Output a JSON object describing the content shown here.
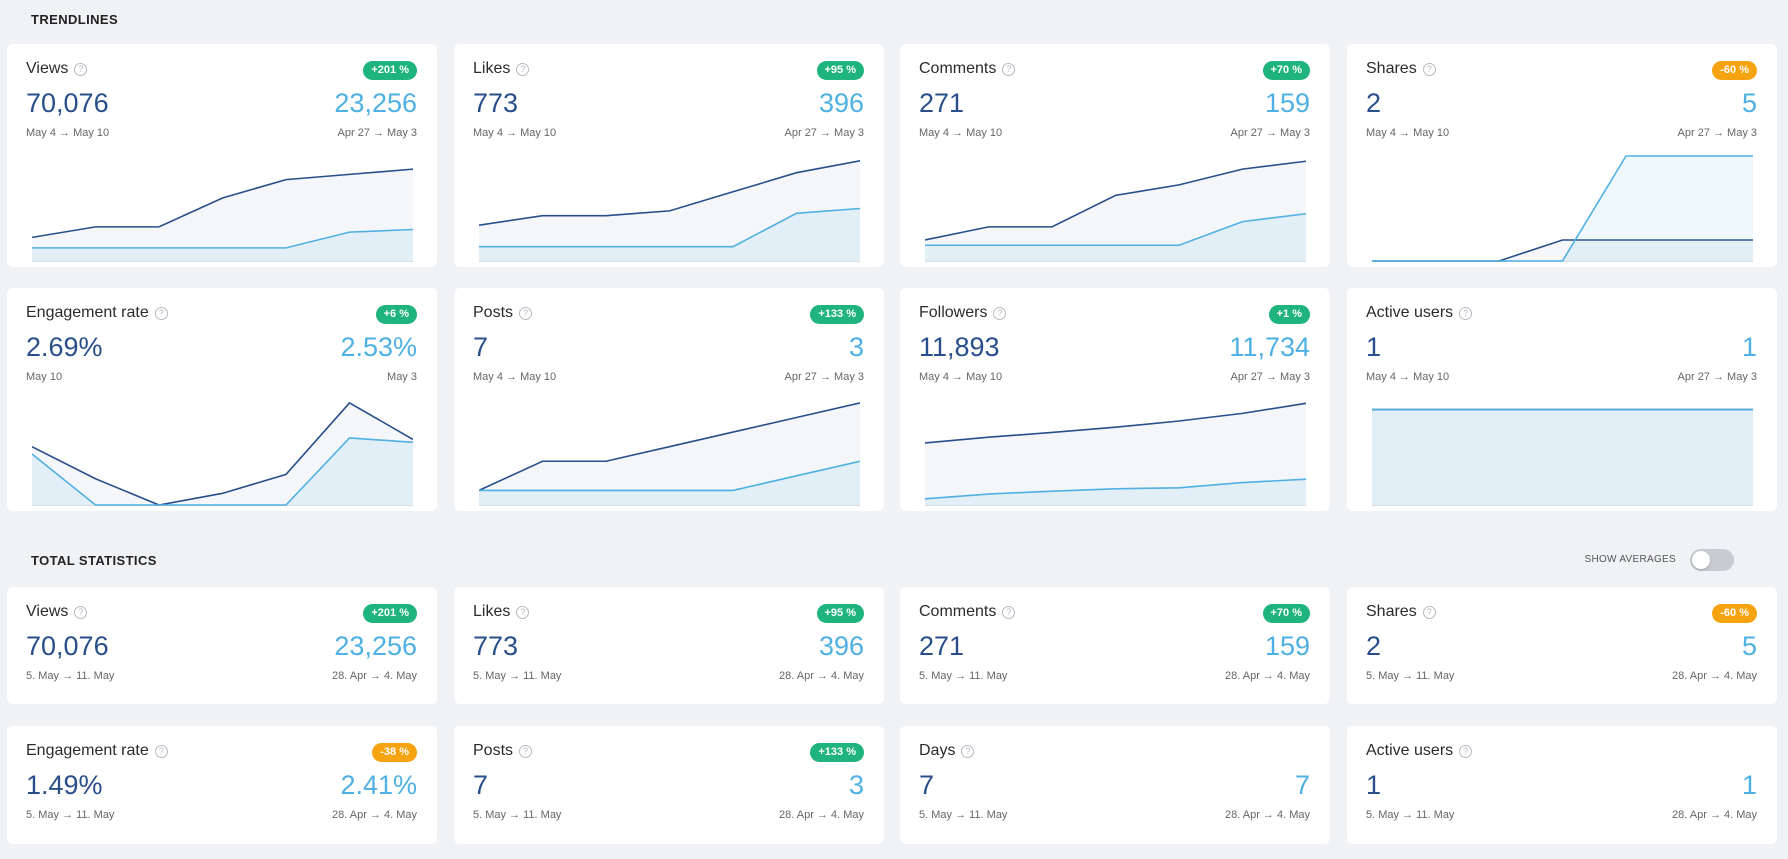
{
  "sections": {
    "trendlines_title": "TRENDLINES",
    "total_title": "TOTAL STATISTICS",
    "show_averages_label": "SHOW AVERAGES",
    "show_averages_on": false
  },
  "colors": {
    "current": "#284f89",
    "previous": "#4fb0e3",
    "badge_up": "#1fb37e",
    "badge_down": "#f5a311"
  },
  "trendlines": [
    {
      "title": "Views",
      "badge": "+201 %",
      "badge_type": "up",
      "current": "70,076",
      "previous": "23,256",
      "current_range": "May 4 → May 10",
      "previous_range": "Apr 27 → May 3",
      "chart_data": {
        "type": "line",
        "current": [
          9,
          13,
          13,
          24,
          31,
          33,
          35
        ],
        "previous": [
          5,
          5,
          5,
          5,
          5,
          11,
          12
        ],
        "ymax": 40
      }
    },
    {
      "title": "Likes",
      "badge": "+95 %",
      "badge_type": "up",
      "current": "773",
      "previous": "396",
      "current_range": "May 4 → May 10",
      "previous_range": "Apr 27 → May 3",
      "chart_data": {
        "type": "line",
        "current": [
          15,
          19,
          19,
          21,
          29,
          37,
          42
        ],
        "previous": [
          6,
          6,
          6,
          6,
          6,
          20,
          22
        ],
        "ymax": 44
      }
    },
    {
      "title": "Comments",
      "badge": "+70 %",
      "badge_type": "up",
      "current": "271",
      "previous": "159",
      "current_range": "May 4 → May 10",
      "previous_range": "Apr 27 → May 3",
      "chart_data": {
        "type": "line",
        "current": [
          8,
          13,
          13,
          25,
          29,
          35,
          38
        ],
        "previous": [
          6,
          6,
          6,
          6,
          6,
          15,
          18
        ],
        "ymax": 40
      }
    },
    {
      "title": "Shares",
      "badge": "-60 %",
      "badge_type": "down",
      "current": "2",
      "previous": "5",
      "current_range": "May 4 → May 10",
      "previous_range": "Apr 27 → May 3",
      "chart_data": {
        "type": "line",
        "current": [
          0,
          0,
          0,
          1,
          1,
          1,
          1
        ],
        "previous": [
          0,
          0,
          0,
          0,
          5,
          5,
          5
        ],
        "ymax": 5
      }
    },
    {
      "title": "Engagement rate",
      "badge": "+6 %",
      "badge_type": "up",
      "current": "2.69%",
      "previous": "2.53%",
      "current_range": "May 10",
      "previous_range": "May 3",
      "chart_data": {
        "type": "line",
        "current": [
          2.0,
          0.9,
          0.0,
          0.4,
          1.05,
          3.5,
          2.25
        ],
        "previous": [
          1.75,
          0.0,
          0.0,
          0.0,
          0.0,
          2.3,
          2.15
        ],
        "ymax": 3.6
      }
    },
    {
      "title": "Posts",
      "badge": "+133 %",
      "badge_type": "up",
      "current": "7",
      "previous": "3",
      "current_range": "May 4 → May 10",
      "previous_range": "Apr 27 → May 3",
      "chart_data": {
        "type": "line",
        "current": [
          1,
          3,
          3,
          4,
          5,
          6,
          7
        ],
        "previous": [
          1,
          1,
          1,
          1,
          1,
          2,
          3
        ],
        "ymax": 7.2
      }
    },
    {
      "title": "Followers",
      "badge": "+1 %",
      "badge_type": "up",
      "current": "11,893",
      "previous": "11,734",
      "current_range": "May 4 → May 10",
      "previous_range": "Apr 27 → May 3",
      "chart_data": {
        "type": "line",
        "current": [
          11810,
          11822,
          11832,
          11843,
          11856,
          11872,
          11893
        ],
        "previous": [
          11693,
          11703,
          11709,
          11714,
          11716,
          11727,
          11734
        ],
        "ymin": 11680,
        "ymax": 11900
      }
    },
    {
      "title": "Active users",
      "badge": "",
      "badge_type": "none",
      "current": "1",
      "previous": "1",
      "current_range": "May 4 → May 10",
      "previous_range": "Apr 27 → May 3",
      "chart_data": {
        "type": "line",
        "current": [
          1,
          1,
          1,
          1,
          1,
          1,
          1
        ],
        "previous": [
          1,
          1,
          1,
          1,
          1,
          1,
          1
        ],
        "ymax": 1.1
      }
    }
  ],
  "totals": [
    {
      "title": "Views",
      "badge": "+201 %",
      "badge_type": "up",
      "current": "70,076",
      "previous": "23,256",
      "current_range": "5. May → 11. May",
      "previous_range": "28. Apr → 4. May"
    },
    {
      "title": "Likes",
      "badge": "+95 %",
      "badge_type": "up",
      "current": "773",
      "previous": "396",
      "current_range": "5. May → 11. May",
      "previous_range": "28. Apr → 4. May"
    },
    {
      "title": "Comments",
      "badge": "+70 %",
      "badge_type": "up",
      "current": "271",
      "previous": "159",
      "current_range": "5. May → 11. May",
      "previous_range": "28. Apr → 4. May"
    },
    {
      "title": "Shares",
      "badge": "-60 %",
      "badge_type": "down",
      "current": "2",
      "previous": "5",
      "current_range": "5. May → 11. May",
      "previous_range": "28. Apr → 4. May"
    },
    {
      "title": "Engagement rate",
      "badge": "-38 %",
      "badge_type": "down",
      "current": "1.49%",
      "previous": "2.41%",
      "current_range": "5. May → 11. May",
      "previous_range": "28. Apr → 4. May"
    },
    {
      "title": "Posts",
      "badge": "+133 %",
      "badge_type": "up",
      "current": "7",
      "previous": "3",
      "current_range": "5. May → 11. May",
      "previous_range": "28. Apr → 4. May"
    },
    {
      "title": "Days",
      "badge": "",
      "badge_type": "none",
      "current": "7",
      "previous": "7",
      "current_range": "5. May → 11. May",
      "previous_range": "28. Apr → 4. May"
    },
    {
      "title": "Active users",
      "badge": "",
      "badge_type": "none",
      "current": "1",
      "previous": "1",
      "current_range": "5. May → 11. May",
      "previous_range": "28. Apr → 4. May"
    }
  ]
}
